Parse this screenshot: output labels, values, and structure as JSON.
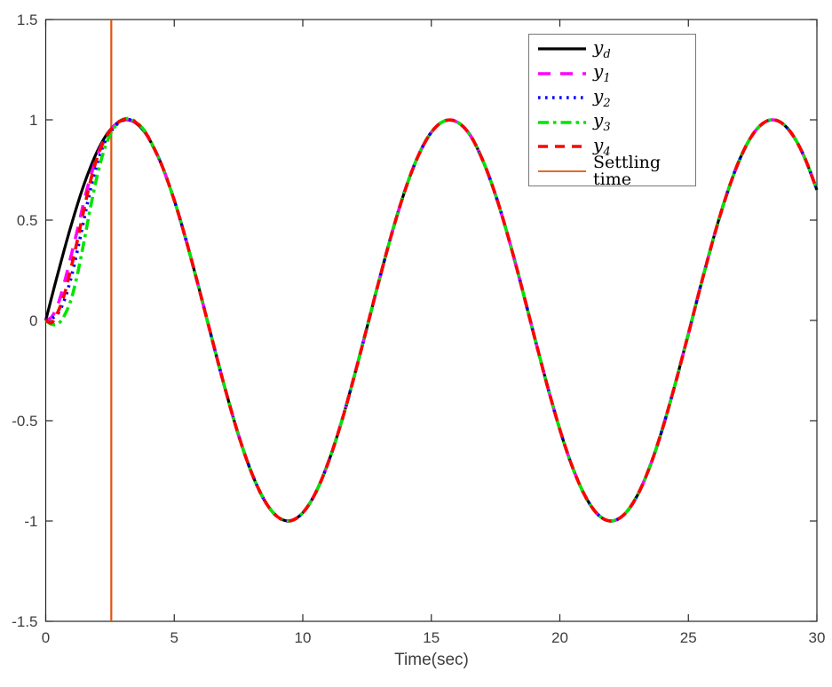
{
  "chart_data": {
    "type": "line",
    "title": "",
    "xlabel": "Time(sec)",
    "ylabel": "",
    "xlim": [
      0,
      30
    ],
    "ylim": [
      -1.5,
      1.5
    ],
    "xticks": [
      0,
      5,
      10,
      15,
      20,
      25,
      30
    ],
    "xtick_labels": [
      "0",
      "5",
      "10",
      "15",
      "20",
      "25",
      "30"
    ],
    "yticks": [
      -1.5,
      -1,
      -0.5,
      0,
      0.5,
      1,
      1.5
    ],
    "ytick_labels": [
      "-1.5",
      "-1",
      "-0.5",
      "0",
      "0.5",
      "1",
      "1.5"
    ],
    "grid": false,
    "legend_position": "top-right",
    "axis_color": "#262626",
    "label_color": "#3d3d3d",
    "description": "Reference y_d = sin(t/2); tracking outputs y_1..y_4 converge to y_d before the settling time line",
    "settling": {
      "label": "Settling time",
      "x": 2.55,
      "color": "#e2540f",
      "width": 2.2,
      "style": "solid"
    },
    "series": [
      {
        "name": "y_d",
        "legend_label": "y_d",
        "color": "#000000",
        "style": "solid",
        "width": 3.2,
        "x_start": 0,
        "x_step": 0.5,
        "values": [
          0.0,
          0.2474,
          0.4794,
          0.6816,
          0.8415,
          0.949,
          0.9975,
          0.9839,
          0.9093,
          0.7781,
          0.5985,
          0.3817,
          0.1411,
          -0.1082,
          -0.3508,
          -0.5716,
          -0.7568,
          -0.895,
          -0.9775,
          -0.9993,
          -0.9589,
          -0.8589,
          -0.7055,
          -0.5083,
          -0.2794,
          -0.0332,
          0.2151,
          0.45,
          0.657,
          0.8231,
          0.938,
          0.9939,
          0.9894,
          0.9258,
          0.7985,
          0.6248,
          0.4121,
          0.1739,
          -0.0752,
          -0.3195,
          -0.544,
          -0.7344,
          -0.8797,
          -0.97,
          -1.0,
          -0.9679,
          -0.8755,
          -0.729,
          -0.5366,
          -0.3111,
          -0.0664,
          0.1826,
          0.4202,
          0.6313,
          0.8035,
          0.9262,
          0.9906,
          0.9937,
          0.9349,
          0.8181,
          0.6503
        ]
      },
      {
        "name": "y_1",
        "legend_label": "y_1",
        "color": "#ff00ff",
        "style": "long-dash",
        "width": 3.6,
        "x_start": 0,
        "x_step": 0.25,
        "follows": "y_d",
        "follows_after": 4,
        "values": [
          0,
          0.02,
          0.09,
          0.2,
          0.33,
          0.46,
          0.6,
          0.72,
          0.82,
          0.895,
          0.945,
          0.98,
          0.998,
          1.0,
          0.985,
          0.955,
          0.91
        ]
      },
      {
        "name": "y_2",
        "legend_label": "y_2",
        "color": "#0000ff",
        "style": "dotted",
        "width": 3.6,
        "x_start": 0,
        "x_step": 0.25,
        "follows": "y_d",
        "follows_after": 4,
        "values": [
          0,
          0.01,
          0.04,
          0.11,
          0.22,
          0.36,
          0.51,
          0.66,
          0.78,
          0.875,
          0.935,
          0.975,
          0.997,
          1.001,
          0.986,
          0.956,
          0.91
        ]
      },
      {
        "name": "y_3",
        "legend_label": "y_3",
        "color": "#00e400",
        "style": "dash-dot",
        "width": 3.6,
        "x_start": 0,
        "x_step": 0.25,
        "follows": "y_d",
        "follows_after": 4,
        "values": [
          0,
          -0.02,
          -0.015,
          0.03,
          0.11,
          0.24,
          0.4,
          0.57,
          0.72,
          0.84,
          0.925,
          0.975,
          1.002,
          1.006,
          0.991,
          0.96,
          0.913
        ]
      },
      {
        "name": "y_4",
        "legend_label": "y_4",
        "color": "#ff0000",
        "style": "dash",
        "width": 3.6,
        "x_start": 0,
        "x_step": 0.25,
        "follows": "y_d",
        "follows_after": 4,
        "values": [
          0,
          -0.01,
          0.05,
          0.14,
          0.27,
          0.41,
          0.56,
          0.7,
          0.81,
          0.89,
          0.945,
          0.982,
          1.0,
          1.003,
          0.988,
          0.957,
          0.911
        ]
      }
    ]
  }
}
